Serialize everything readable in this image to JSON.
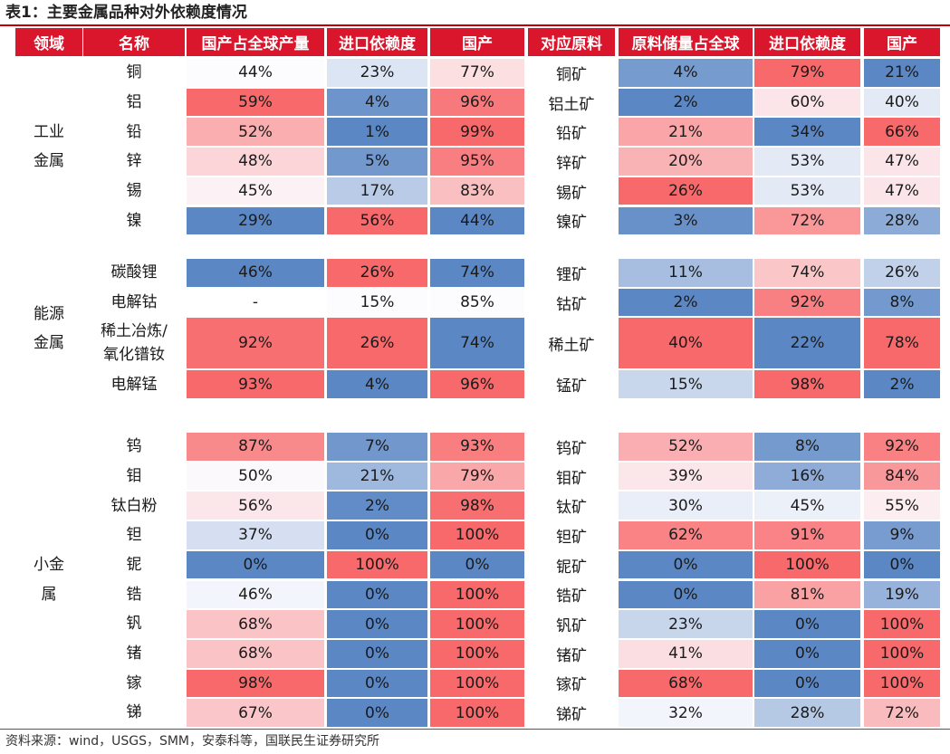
{
  "title": "表1：主要金属品种对外依赖度情况",
  "headers": [
    "领域",
    "名称",
    "国产占全球产量",
    "进口依赖度",
    "国产",
    "对应原料",
    "原料储量占全球",
    "进口依赖度",
    "国产"
  ],
  "groups": [
    {
      "domain": "工业\n金属",
      "rows": [
        {
          "name": "铜",
          "share": "44%",
          "import_dep": "23%",
          "domestic": "77%",
          "raw": "铜矿",
          "raw_reserve": "4%",
          "raw_import_dep": "79%",
          "raw_domestic": "21%"
        },
        {
          "name": "铝",
          "share": "59%",
          "import_dep": "4%",
          "domestic": "96%",
          "raw": "铝土矿",
          "raw_reserve": "2%",
          "raw_import_dep": "60%",
          "raw_domestic": "40%"
        },
        {
          "name": "铅",
          "share": "52%",
          "import_dep": "1%",
          "domestic": "99%",
          "raw": "铅矿",
          "raw_reserve": "21%",
          "raw_import_dep": "34%",
          "raw_domestic": "66%"
        },
        {
          "name": "锌",
          "share": "48%",
          "import_dep": "5%",
          "domestic": "95%",
          "raw": "锌矿",
          "raw_reserve": "20%",
          "raw_import_dep": "53%",
          "raw_domestic": "47%"
        },
        {
          "name": "锡",
          "share": "45%",
          "import_dep": "17%",
          "domestic": "83%",
          "raw": "锡矿",
          "raw_reserve": "26%",
          "raw_import_dep": "53%",
          "raw_domestic": "47%"
        },
        {
          "name": "镍",
          "share": "29%",
          "import_dep": "56%",
          "domestic": "44%",
          "raw": "镍矿",
          "raw_reserve": "3%",
          "raw_import_dep": "72%",
          "raw_domestic": "28%"
        }
      ]
    },
    {
      "domain": "能源\n金属",
      "rows": [
        {
          "name": "碳酸锂",
          "share": "46%",
          "import_dep": "26%",
          "domestic": "74%",
          "raw": "锂矿",
          "raw_reserve": "11%",
          "raw_import_dep": "74%",
          "raw_domestic": "26%"
        },
        {
          "name": "电解钴",
          "share": "-",
          "import_dep": "15%",
          "domestic": "85%",
          "raw": "钴矿",
          "raw_reserve": "2%",
          "raw_import_dep": "92%",
          "raw_domestic": "8%"
        },
        {
          "name": "稀土冶炼/\n氧化镨钕",
          "share": "92%",
          "import_dep": "26%",
          "domestic": "74%",
          "raw": "稀土矿",
          "raw_reserve": "40%",
          "raw_import_dep": "22%",
          "raw_domestic": "78%"
        },
        {
          "name": "电解锰",
          "share": "93%",
          "import_dep": "4%",
          "domestic": "96%",
          "raw": "锰矿",
          "raw_reserve": "15%",
          "raw_import_dep": "98%",
          "raw_domestic": "2%"
        }
      ]
    },
    {
      "domain": "小金\n属",
      "rows": [
        {
          "name": "钨",
          "share": "87%",
          "import_dep": "7%",
          "domestic": "93%",
          "raw": "钨矿",
          "raw_reserve": "52%",
          "raw_import_dep": "8%",
          "raw_domestic": "92%"
        },
        {
          "name": "钼",
          "share": "50%",
          "import_dep": "21%",
          "domestic": "79%",
          "raw": "钼矿",
          "raw_reserve": "39%",
          "raw_import_dep": "16%",
          "raw_domestic": "84%"
        },
        {
          "name": "钛白粉",
          "share": "56%",
          "import_dep": "2%",
          "domestic": "98%",
          "raw": "钛矿",
          "raw_reserve": "30%",
          "raw_import_dep": "45%",
          "raw_domestic": "55%"
        },
        {
          "name": "钽",
          "share": "37%",
          "import_dep": "0%",
          "domestic": "100%",
          "raw": "钽矿",
          "raw_reserve": "62%",
          "raw_import_dep": "91%",
          "raw_domestic": "9%"
        },
        {
          "name": "铌",
          "share": "0%",
          "import_dep": "100%",
          "domestic": "0%",
          "raw": "铌矿",
          "raw_reserve": "0%",
          "raw_import_dep": "100%",
          "raw_domestic": "0%"
        },
        {
          "name": "锆",
          "share": "46%",
          "import_dep": "0%",
          "domestic": "100%",
          "raw": "锆矿",
          "raw_reserve": "0%",
          "raw_import_dep": "81%",
          "raw_domestic": "19%"
        },
        {
          "name": "钒",
          "share": "68%",
          "import_dep": "0%",
          "domestic": "100%",
          "raw": "钒矿",
          "raw_reserve": "23%",
          "raw_import_dep": "0%",
          "raw_domestic": "100%"
        },
        {
          "name": "锗",
          "share": "68%",
          "import_dep": "0%",
          "domestic": "100%",
          "raw": "锗矿",
          "raw_reserve": "41%",
          "raw_import_dep": "0%",
          "raw_domestic": "100%"
        },
        {
          "name": "镓",
          "share": "98%",
          "import_dep": "0%",
          "domestic": "100%",
          "raw": "镓矿",
          "raw_reserve": "68%",
          "raw_import_dep": "0%",
          "raw_domestic": "100%"
        },
        {
          "name": "锑",
          "share": "67%",
          "import_dep": "0%",
          "domestic": "100%",
          "raw": "锑矿",
          "raw_reserve": "32%",
          "raw_import_dep": "28%",
          "raw_domestic": "72%"
        }
      ]
    }
  ],
  "colors": {
    "header_bg": "#d9162b",
    "blue_extreme": "#5b87c5",
    "red_extreme": "#f8696b",
    "neutral": "#fcfcff"
  },
  "source": "资料来源：wind，USGS，SMM，安泰科等，国联民生证券研究所"
}
